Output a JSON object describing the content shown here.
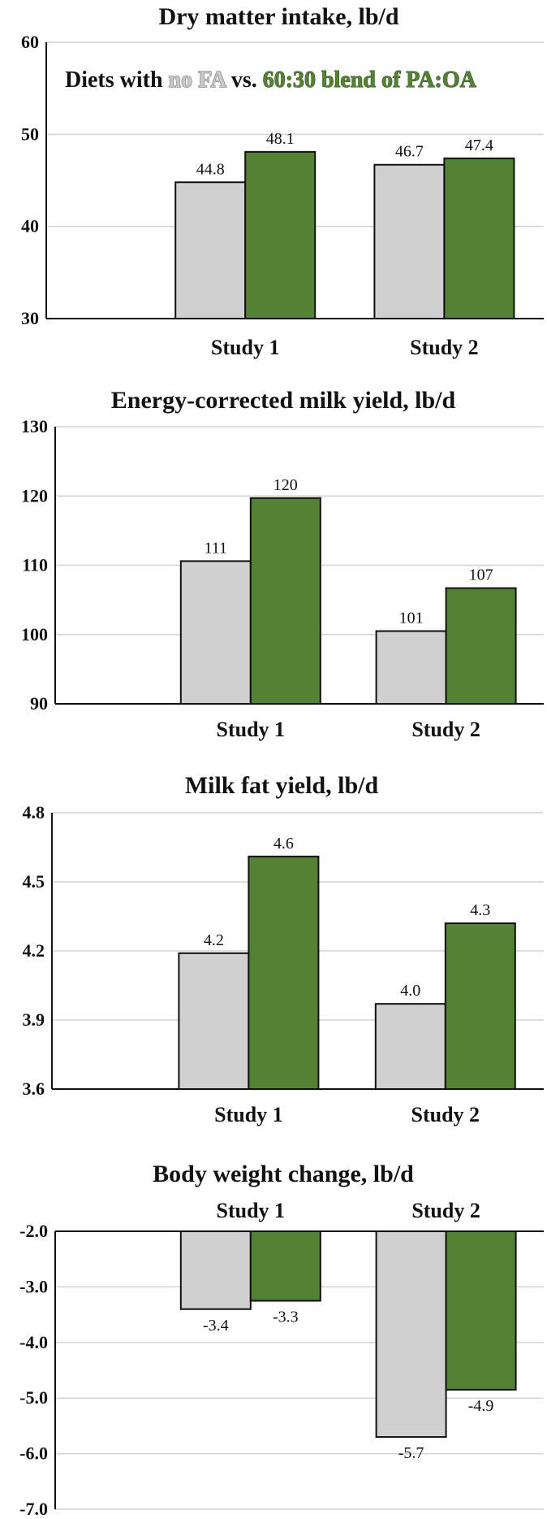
{
  "legend": {
    "prefix": "Diets with",
    "series_a": "no FA",
    "middle": "vs.",
    "series_b": "60:30 blend of PA:OA"
  },
  "colors": {
    "no_fa": "#d1d0d1",
    "blend": "#548235"
  },
  "chart_data": [
    {
      "type": "bar",
      "title": "Dry matter intake, lb/d",
      "categories": [
        "Study 1",
        "Study 2"
      ],
      "series": [
        {
          "name": "no FA",
          "values": [
            44.8,
            46.7
          ],
          "labels": [
            "44.8",
            "46.7"
          ]
        },
        {
          "name": "60:30 blend of PA:OA",
          "values": [
            48.1,
            47.4
          ],
          "labels": [
            "48.1",
            "47.4"
          ]
        }
      ],
      "ylim": [
        30,
        60
      ],
      "yticks": [
        "30",
        "40",
        "50",
        "60"
      ],
      "grid": true,
      "category_axis": "bottom",
      "label_position": "above"
    },
    {
      "type": "bar",
      "title": "Energy-corrected milk yield, lb/d",
      "categories": [
        "Study 1",
        "Study 2"
      ],
      "series": [
        {
          "name": "no FA",
          "values": [
            110.6,
            100.5
          ],
          "labels": [
            "111",
            "101"
          ]
        },
        {
          "name": "60:30 blend of PA:OA",
          "values": [
            119.7,
            106.7
          ],
          "labels": [
            "120",
            "107"
          ]
        }
      ],
      "ylim": [
        90,
        130
      ],
      "yticks": [
        "90",
        "100",
        "110",
        "120",
        "130"
      ],
      "grid": true,
      "category_axis": "bottom",
      "label_position": "above"
    },
    {
      "type": "bar",
      "title": "Milk fat yield, lb/d",
      "categories": [
        "Study 1",
        "Study 2"
      ],
      "series": [
        {
          "name": "no FA",
          "values": [
            4.19,
            3.97
          ],
          "labels": [
            "4.2",
            "4.0"
          ]
        },
        {
          "name": "60:30 blend of PA:OA",
          "values": [
            4.61,
            4.32
          ],
          "labels": [
            "4.6",
            "4.3"
          ]
        }
      ],
      "ylim": [
        3.6,
        4.8
      ],
      "yticks": [
        "3.6",
        "3.9",
        "4.2",
        "4.5",
        "4.8"
      ],
      "grid": true,
      "category_axis": "bottom",
      "label_position": "above"
    },
    {
      "type": "bar",
      "title": "Body weight change, lb/d",
      "categories": [
        "Study 1",
        "Study 2"
      ],
      "series": [
        {
          "name": "no FA",
          "values": [
            -3.4,
            -5.7
          ],
          "labels": [
            "-3.4",
            "-5.7"
          ]
        },
        {
          "name": "60:30 blend of PA:OA",
          "values": [
            -3.25,
            -4.85
          ],
          "labels": [
            "-3.3",
            "-4.9"
          ]
        }
      ],
      "ylim": [
        -7.0,
        -2.0
      ],
      "yticks": [
        "-7.0",
        "-6.0",
        "-5.0",
        "-4.0",
        "-3.0",
        "-2.0"
      ],
      "grid": true,
      "category_axis": "top",
      "label_position": "below"
    }
  ]
}
